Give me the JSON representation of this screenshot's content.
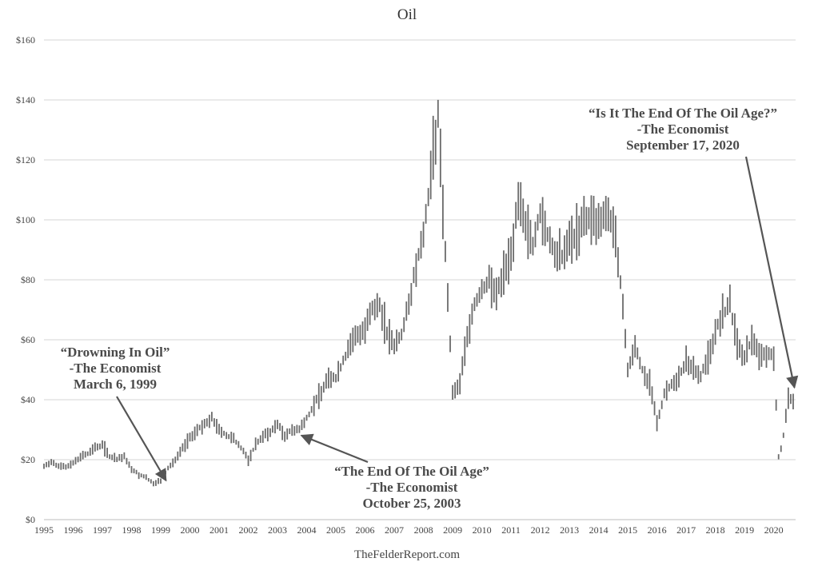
{
  "chart_data": {
    "type": "line",
    "style": "monthly high-low range bars",
    "title": "Oil",
    "xlabel": "",
    "ylabel": "",
    "source": "TheFelderReport.com",
    "xlim": [
      1995,
      2020.75
    ],
    "ylim": [
      0,
      160
    ],
    "grid": "horizontal",
    "y_ticks": [
      0,
      20,
      40,
      60,
      80,
      100,
      120,
      140,
      160
    ],
    "y_tick_labels": [
      "$0",
      "$20",
      "$40",
      "$60",
      "$80",
      "$100",
      "$120",
      "$140",
      "$160"
    ],
    "x_ticks": [
      1995,
      1996,
      1997,
      1998,
      1999,
      2000,
      2001,
      2002,
      2003,
      2004,
      2005,
      2006,
      2007,
      2008,
      2009,
      2010,
      2011,
      2012,
      2013,
      2014,
      2015,
      2016,
      2017,
      2018,
      2019,
      2020
    ],
    "x_tick_labels": [
      "1995",
      "1996",
      "1997",
      "1998",
      "1999",
      "2000",
      "2001",
      "2002",
      "2003",
      "2004",
      "2005",
      "2006",
      "2007",
      "2008",
      "2009",
      "2010",
      "2011",
      "2012",
      "2013",
      "2014",
      "2015",
      "2016",
      "2017",
      "2018",
      "2019",
      "2020"
    ],
    "bar_color": "#6b6b6b",
    "series": [
      {
        "x": [
          1995.0,
          1995.25,
          1995.5,
          1995.75,
          1996.0,
          1996.25,
          1996.5,
          1996.75,
          1997.0,
          1997.25,
          1997.5,
          1997.75,
          1998.0,
          1998.25,
          1998.5,
          1998.75,
          1999.0,
          1999.25,
          1999.5,
          1999.75,
          2000.0,
          2000.25,
          2000.5,
          2000.75,
          2001.0,
          2001.25,
          2001.5,
          2001.75,
          2002.0,
          2002.25,
          2002.5,
          2002.75,
          2003.0,
          2003.25,
          2003.5,
          2003.75,
          2004.0,
          2004.25,
          2004.5,
          2004.75,
          2005.0,
          2005.25,
          2005.5,
          2005.75,
          2006.0,
          2006.25,
          2006.5,
          2006.75,
          2007.0,
          2007.25,
          2007.5,
          2007.75,
          2008.0,
          2008.25,
          2008.5,
          2008.75,
          2009.0,
          2009.25,
          2009.5,
          2009.75,
          2010.0,
          2010.25,
          2010.5,
          2010.75,
          2011.0,
          2011.25,
          2011.5,
          2011.75,
          2012.0,
          2012.25,
          2012.5,
          2012.75,
          2013.0,
          2013.25,
          2013.5,
          2013.75,
          2014.0,
          2014.25,
          2014.5,
          2014.75,
          2015.0,
          2015.25,
          2015.5,
          2015.75,
          2016.0,
          2016.25,
          2016.5,
          2016.75,
          2017.0,
          2017.25,
          2017.5,
          2017.75,
          2018.0,
          2018.25,
          2018.5,
          2018.75,
          2019.0,
          2019.25,
          2019.5,
          2019.75,
          2020.0,
          2020.17,
          2020.33,
          2020.5,
          2020.7
        ],
        "y": [
          18,
          19,
          18,
          17.5,
          19,
          21,
          22,
          24,
          25,
          21,
          20,
          21,
          17,
          15,
          14,
          12,
          13,
          17,
          20,
          24,
          27,
          30,
          32,
          34,
          30,
          28,
          27,
          24,
          20,
          25,
          28,
          29,
          32,
          28,
          30,
          30,
          34,
          38,
          43,
          48,
          47,
          53,
          58,
          62,
          64,
          70,
          72,
          62,
          58,
          62,
          72,
          85,
          95,
          115,
          135,
          90,
          42,
          45,
          62,
          72,
          76,
          80,
          76,
          82,
          89,
          107,
          98,
          92,
          102,
          95,
          88,
          88,
          93,
          95,
          100,
          100,
          98,
          103,
          98,
          80,
          50,
          58,
          50,
          45,
          32,
          42,
          45,
          48,
          53,
          50,
          48,
          54,
          63,
          68,
          72,
          58,
          54,
          60,
          56,
          55,
          55,
          20,
          28,
          40,
          40
        ]
      }
    ],
    "annotations": [
      {
        "lines": [
          "“Drowning In Oil”",
          "-The Economist",
          "March 6, 1999"
        ],
        "date": 1999.18,
        "value": 12
      },
      {
        "lines": [
          "“The End Of The Oil Age”",
          "-The Economist",
          "October 25, 2003"
        ],
        "date": 2003.82,
        "value": 27
      },
      {
        "lines": [
          "“Is It The End Of The Oil Age?”",
          "-The Economist",
          "September 17, 2020"
        ],
        "date": 2020.71,
        "value": 43
      }
    ]
  }
}
